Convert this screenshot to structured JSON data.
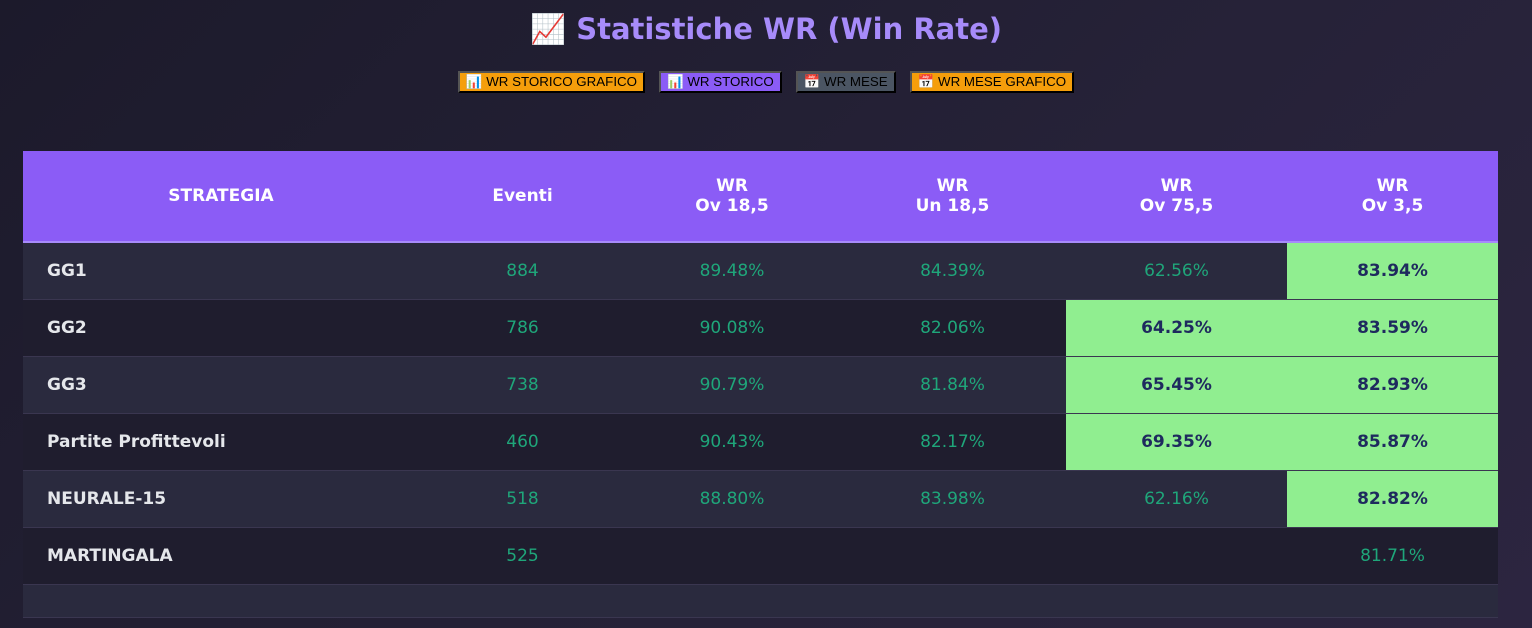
{
  "header": {
    "title": "📈 Statistiche WR (Win Rate)"
  },
  "buttons": [
    {
      "label": "📊 WR STORICO GRAFICO",
      "color": "#f59e0b"
    },
    {
      "label": "📊 WR STORICO",
      "color": "#8b5cf6"
    },
    {
      "label": "📅 WR MESE",
      "color": "#4b5563"
    },
    {
      "label": "📅 WR MESE GRAFICO",
      "color": "#f59e0b"
    }
  ],
  "table": {
    "columns": [
      [
        "STRATEGIA"
      ],
      [
        "Eventi"
      ],
      [
        "WR",
        "Ov 18,5"
      ],
      [
        "WR",
        "Un 18,5"
      ],
      [
        "WR",
        "Ov 75,5"
      ],
      [
        "WR",
        "Ov 3,5"
      ]
    ],
    "rows": [
      [
        "GG1",
        "884",
        "89.48%",
        "84.39%",
        "62.56%",
        "83.94%"
      ],
      [
        "GG2",
        "786",
        "90.08%",
        "82.06%",
        "64.25%",
        "83.59%"
      ],
      [
        "GG3",
        "738",
        "90.79%",
        "81.84%",
        "65.45%",
        "82.93%"
      ],
      [
        "Partite Profittevoli",
        "460",
        "90.43%",
        "82.17%",
        "69.35%",
        "85.87%"
      ],
      [
        "NEURALE-15",
        "518",
        "88.80%",
        "83.98%",
        "62.16%",
        "82.82%"
      ],
      [
        "MARTINGALA",
        "525",
        null,
        null,
        null,
        "81.71%"
      ]
    ],
    "highlighted": [
      [
        5
      ],
      [
        4,
        5
      ],
      [
        4,
        5
      ],
      [
        4,
        5
      ],
      [
        5
      ],
      []
    ],
    "highlight_color": "#90ee90"
  }
}
